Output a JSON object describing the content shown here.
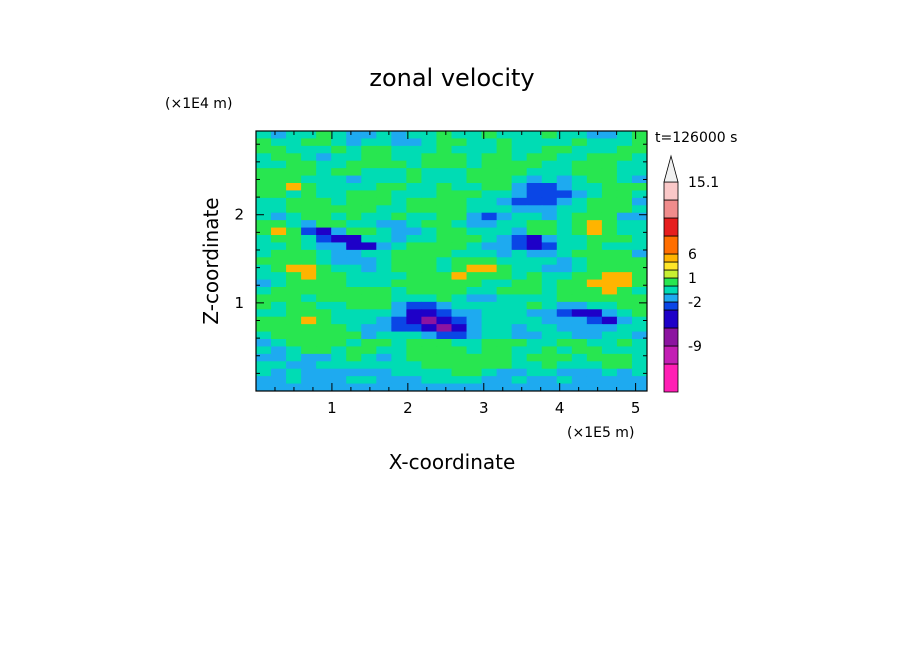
{
  "chart_data": {
    "type": "heatmap",
    "title": "zonal velocity",
    "xlabel": "X-coordinate",
    "ylabel": "Z-coordinate",
    "x_unit": "(×1E5 m)",
    "y_unit": "(×1E4 m)",
    "time_label": "t=126000 s",
    "xlim": [
      0,
      5.15
    ],
    "ylim": [
      0,
      2.95
    ],
    "x_ticks": [
      1,
      2,
      3,
      4,
      5
    ],
    "y_ticks": [
      1,
      2
    ],
    "colorbar": {
      "levels": [
        -15,
        -12,
        -9,
        -6,
        -3,
        -2,
        -1,
        0,
        1,
        2,
        3,
        6,
        9,
        12,
        15.1
      ],
      "colors": [
        "#ff1eb4",
        "#c31eb4",
        "#8c14a0",
        "#1e00c8",
        "#0a46e6",
        "#1eaaf0",
        "#00dcb4",
        "#28e650",
        "#c8f032",
        "#ffe628",
        "#ffb400",
        "#ff6e00",
        "#e61e1e",
        "#f08c8c",
        "#fac8c8"
      ],
      "extend_color": "#f0f0f0",
      "tick_labels": [
        "-9",
        "-2",
        "1",
        "6",
        "15.1"
      ]
    },
    "field_grid_note": "",
    "field": [
      [
        0,
        -1,
        0,
        0,
        1,
        0,
        -1,
        -1,
        0,
        -1,
        0,
        0,
        1,
        0,
        0,
        1,
        0,
        0,
        0,
        1,
        0,
        0,
        -1,
        -1,
        0,
        1
      ],
      [
        1,
        0,
        0,
        1,
        1,
        0,
        -1,
        0,
        0,
        -1,
        -1,
        0,
        1,
        1,
        0,
        0,
        1,
        0,
        0,
        0,
        0,
        1,
        0,
        0,
        0,
        1
      ],
      [
        1,
        1,
        0,
        0,
        0,
        1,
        0,
        1,
        1,
        0,
        0,
        0,
        1,
        0,
        0,
        0,
        1,
        0,
        0,
        1,
        1,
        0,
        0,
        0,
        1,
        1
      ],
      [
        0,
        1,
        1,
        0,
        -1,
        0,
        0,
        1,
        1,
        0,
        0,
        1,
        1,
        1,
        0,
        1,
        1,
        0,
        1,
        1,
        0,
        0,
        1,
        1,
        1,
        0
      ],
      [
        0,
        0,
        1,
        1,
        0,
        0,
        1,
        1,
        1,
        1,
        0,
        1,
        1,
        1,
        0,
        1,
        1,
        1,
        1,
        0,
        0,
        1,
        1,
        1,
        0,
        0
      ],
      [
        1,
        1,
        1,
        1,
        0,
        1,
        1,
        0,
        0,
        0,
        1,
        0,
        0,
        0,
        1,
        1,
        1,
        1,
        0,
        0,
        0,
        1,
        1,
        1,
        0,
        0
      ],
      [
        1,
        1,
        1,
        0,
        0,
        0,
        -1,
        0,
        0,
        0,
        1,
        0,
        0,
        0,
        1,
        1,
        1,
        0,
        -1,
        0,
        -1,
        0,
        1,
        1,
        0,
        -1
      ],
      [
        1,
        1,
        2,
        1,
        0,
        0,
        0,
        0,
        1,
        1,
        0,
        0,
        1,
        0,
        0,
        1,
        1,
        -1,
        -2,
        -2,
        -1,
        0,
        0,
        1,
        1,
        1
      ],
      [
        1,
        1,
        0,
        1,
        0,
        0,
        1,
        1,
        1,
        0,
        0,
        0,
        1,
        1,
        1,
        0,
        0,
        -1,
        -2,
        -2,
        -2,
        -1,
        0,
        1,
        1,
        0
      ],
      [
        0,
        0,
        1,
        1,
        1,
        0,
        1,
        1,
        1,
        0,
        1,
        1,
        1,
        1,
        0,
        0,
        -1,
        -2,
        -2,
        -2,
        -1,
        0,
        1,
        1,
        1,
        -1
      ],
      [
        0,
        0,
        1,
        1,
        1,
        1,
        1,
        1,
        0,
        0,
        1,
        1,
        1,
        1,
        0,
        0,
        0,
        -1,
        -1,
        -1,
        0,
        0,
        1,
        1,
        1,
        0
      ],
      [
        0,
        -1,
        0,
        1,
        1,
        0,
        1,
        0,
        0,
        1,
        0,
        0,
        1,
        1,
        -1,
        -2,
        -1,
        0,
        0,
        -1,
        0,
        1,
        1,
        1,
        -1,
        -1
      ],
      [
        1,
        1,
        0,
        -1,
        1,
        1,
        0,
        0,
        -1,
        -1,
        0,
        1,
        1,
        0,
        -1,
        -1,
        0,
        0,
        1,
        1,
        0,
        1,
        2,
        1,
        0,
        0
      ],
      [
        1,
        2,
        1,
        -2,
        -3,
        -1,
        1,
        1,
        0,
        -1,
        -1,
        0,
        1,
        1,
        0,
        0,
        0,
        -1,
        1,
        1,
        0,
        1,
        2,
        1,
        0,
        0
      ],
      [
        0,
        1,
        1,
        0,
        -2,
        -3,
        -3,
        0,
        0,
        -1,
        0,
        0,
        1,
        1,
        1,
        0,
        -1,
        -2,
        -3,
        -1,
        0,
        0,
        1,
        1,
        1,
        0
      ],
      [
        0,
        0,
        1,
        0,
        -1,
        -1,
        -3,
        -3,
        -1,
        0,
        1,
        1,
        1,
        1,
        0,
        -1,
        -1,
        -2,
        -3,
        -2,
        0,
        0,
        1,
        0,
        0,
        0
      ],
      [
        0,
        1,
        1,
        1,
        0,
        -1,
        -1,
        0,
        0,
        1,
        1,
        1,
        1,
        0,
        0,
        0,
        -1,
        0,
        -1,
        -1,
        0,
        1,
        1,
        1,
        1,
        -1
      ],
      [
        1,
        1,
        1,
        1,
        0,
        -1,
        -1,
        -1,
        0,
        1,
        1,
        1,
        0,
        1,
        1,
        1,
        0,
        0,
        0,
        0,
        -1,
        0,
        1,
        1,
        1,
        1
      ],
      [
        0,
        1,
        2,
        2,
        1,
        0,
        0,
        -1,
        0,
        1,
        1,
        1,
        0,
        1,
        2,
        2,
        1,
        0,
        0,
        -1,
        -1,
        0,
        1,
        1,
        1,
        1
      ],
      [
        0,
        0,
        1,
        2,
        1,
        1,
        0,
        0,
        0,
        0,
        1,
        1,
        1,
        2,
        1,
        1,
        1,
        0,
        1,
        0,
        0,
        1,
        1,
        2,
        2,
        1
      ],
      [
        -1,
        0,
        1,
        1,
        1,
        1,
        0,
        0,
        0,
        1,
        1,
        1,
        1,
        1,
        1,
        0,
        0,
        1,
        1,
        0,
        1,
        1,
        2,
        2,
        2,
        1
      ],
      [
        0,
        1,
        1,
        1,
        1,
        1,
        1,
        1,
        1,
        0,
        1,
        1,
        1,
        1,
        0,
        0,
        1,
        1,
        1,
        0,
        1,
        1,
        1,
        2,
        1,
        0
      ],
      [
        1,
        1,
        1,
        0,
        1,
        1,
        1,
        1,
        1,
        0,
        0,
        0,
        1,
        0,
        -1,
        -1,
        0,
        0,
        0,
        0,
        1,
        1,
        1,
        1,
        1,
        1
      ],
      [
        1,
        0,
        1,
        1,
        0,
        0,
        1,
        1,
        1,
        -1,
        -2,
        -2,
        -1,
        0,
        0,
        0,
        0,
        0,
        1,
        0,
        -1,
        -1,
        0,
        0,
        1,
        1
      ],
      [
        0,
        0,
        1,
        1,
        1,
        0,
        0,
        0,
        0,
        -1,
        -3,
        -3,
        -2,
        -1,
        -1,
        0,
        0,
        0,
        -1,
        -1,
        -2,
        -3,
        -3,
        -1,
        0,
        1
      ],
      [
        1,
        1,
        1,
        2,
        1,
        0,
        0,
        0,
        -1,
        -2,
        -3,
        -4,
        -3,
        -2,
        -1,
        0,
        0,
        0,
        0,
        -1,
        -1,
        -1,
        -2,
        -3,
        -1,
        0
      ],
      [
        1,
        1,
        1,
        1,
        1,
        1,
        0,
        -1,
        -1,
        -2,
        -2,
        -3,
        -4,
        -3,
        -1,
        0,
        0,
        -1,
        0,
        0,
        -1,
        -1,
        -1,
        -1,
        0,
        0
      ],
      [
        0,
        1,
        1,
        1,
        1,
        1,
        1,
        -1,
        0,
        0,
        0,
        -1,
        -2,
        -2,
        -1,
        0,
        0,
        -1,
        -1,
        0,
        0,
        -1,
        -1,
        0,
        0,
        -1
      ],
      [
        -1,
        0,
        1,
        1,
        1,
        1,
        0,
        1,
        1,
        0,
        1,
        1,
        1,
        0,
        0,
        1,
        1,
        1,
        0,
        0,
        1,
        1,
        0,
        0,
        1,
        0
      ],
      [
        0,
        -1,
        0,
        1,
        1,
        0,
        1,
        1,
        0,
        0,
        1,
        1,
        1,
        1,
        0,
        1,
        1,
        0,
        0,
        1,
        0,
        1,
        1,
        0,
        0,
        0
      ],
      [
        -1,
        -1,
        0,
        -1,
        -1,
        0,
        1,
        0,
        -1,
        0,
        1,
        1,
        1,
        1,
        1,
        1,
        1,
        0,
        1,
        1,
        1,
        0,
        1,
        1,
        1,
        0
      ],
      [
        0,
        0,
        -1,
        -1,
        0,
        0,
        0,
        0,
        0,
        0,
        0,
        1,
        1,
        1,
        1,
        1,
        1,
        0,
        0,
        1,
        0,
        0,
        0,
        1,
        1,
        0
      ],
      [
        0,
        -1,
        0,
        -1,
        -1,
        -1,
        -1,
        -1,
        -1,
        0,
        0,
        0,
        0,
        1,
        1,
        0,
        -1,
        -1,
        0,
        0,
        -1,
        -1,
        -1,
        0,
        -1,
        0
      ],
      [
        -1,
        -1,
        0,
        -1,
        -1,
        -1,
        0,
        0,
        -1,
        -1,
        -1,
        0,
        0,
        0,
        0,
        -1,
        -1,
        0,
        -1,
        -1,
        0,
        -1,
        -1,
        -1,
        -1,
        -1
      ],
      [
        -1,
        -1,
        -1,
        -1,
        -1,
        -1,
        -1,
        -1,
        -1,
        -1,
        -1,
        -1,
        -1,
        -1,
        -1,
        -1,
        -1,
        -1,
        -1,
        -1,
        -1,
        -1,
        -1,
        -1,
        -1,
        -1
      ]
    ],
    "field_value_map": {
      "-4": -7,
      "-3": -4,
      "-2": -2.5,
      "-1": -1.5,
      "0": -0.5,
      "1": 0.5,
      "2": 4
    }
  }
}
